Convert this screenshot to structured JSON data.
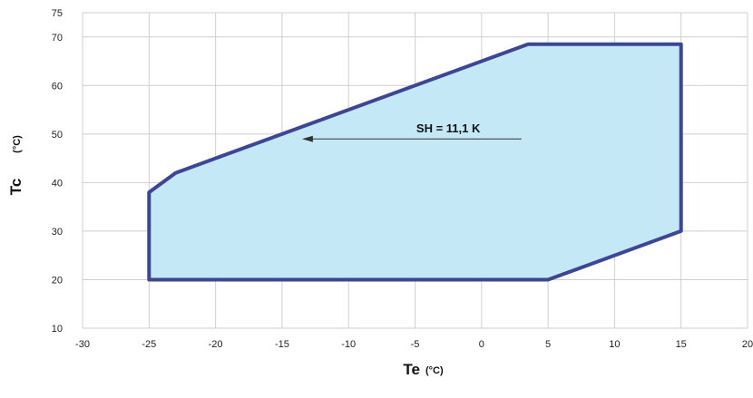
{
  "chart_data": {
    "type": "area",
    "x_axis": {
      "label": "Te",
      "unit": "(°C)",
      "range": [
        -30,
        20
      ],
      "ticks": [
        -30,
        -25,
        -20,
        -15,
        -10,
        -5,
        0,
        5,
        10,
        15,
        20
      ]
    },
    "y_axis": {
      "label": "Tc",
      "unit": "(°C)",
      "range": [
        10,
        75
      ],
      "ticks": [
        10,
        20,
        30,
        40,
        50,
        60,
        70,
        75
      ]
    },
    "grid": true,
    "envelope": {
      "points": [
        {
          "x": -25,
          "y": 20
        },
        {
          "x": 5,
          "y": 20
        },
        {
          "x": 15,
          "y": 30
        },
        {
          "x": 15,
          "y": 68.5
        },
        {
          "x": 3.5,
          "y": 68.5
        },
        {
          "x": -23,
          "y": 42
        },
        {
          "x": -25,
          "y": 38
        }
      ],
      "fill_color": "#c5e8f7",
      "stroke_color": "#3d4596"
    },
    "annotation": {
      "text": "SH = 11,1 K",
      "arrow_from": {
        "x": 3,
        "y": 49
      },
      "arrow_to": {
        "x": -13.5,
        "y": 49
      },
      "label_at": {
        "x": -2.5,
        "y": 51.3
      }
    },
    "colors": {
      "grid": "#cfcfcf",
      "text": "#222222",
      "arrow": "#333333"
    }
  }
}
